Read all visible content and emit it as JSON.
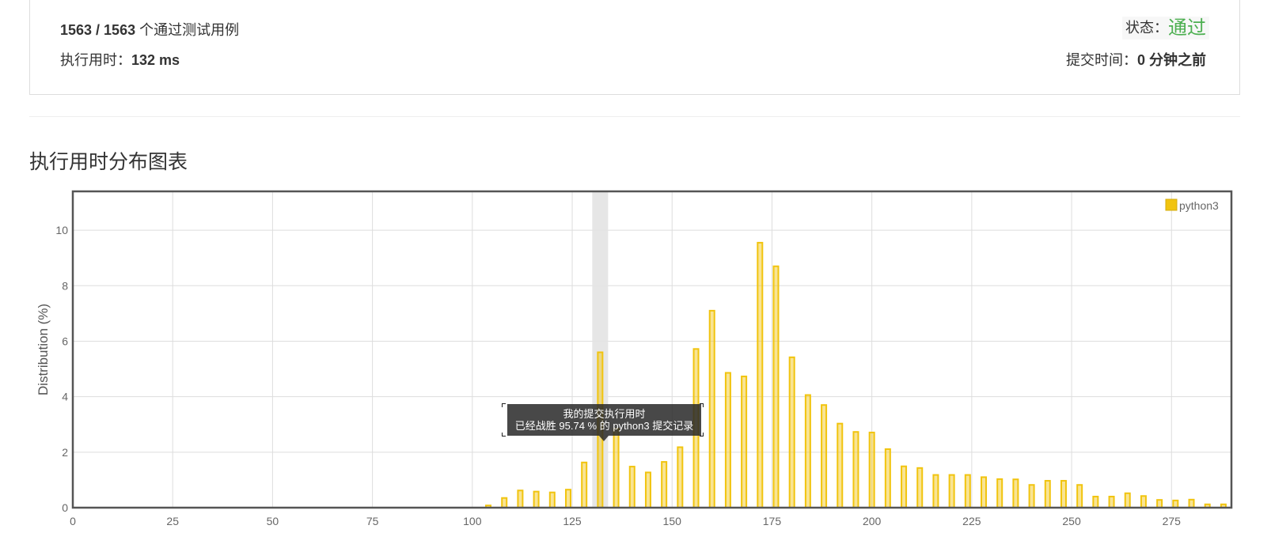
{
  "summary": {
    "cases_passed": "1563 / 1563",
    "cases_suffix": " 个通过测试用例",
    "runtime_label": "执行用时：",
    "runtime_value": "132 ms",
    "status_label": "状态：",
    "status_value": "通过",
    "submit_time_label": "提交时间：",
    "submit_time_value": "0 分钟之前",
    "status_color": "#4caf50"
  },
  "section_title": "执行用时分布图表",
  "tooltip": {
    "line1": "我的提交执行用时",
    "line2": "已经战胜 95.74 % 的 python3 提交记录"
  },
  "chart_data": {
    "type": "bar",
    "ylabel": "Distribution (%)",
    "xlabel": "",
    "xlim": [
      0,
      290
    ],
    "ylim": [
      0,
      11.4
    ],
    "x_ticks": [
      0,
      25,
      50,
      75,
      100,
      125,
      150,
      175,
      200,
      225,
      250,
      275
    ],
    "y_ticks": [
      0,
      2,
      4,
      6,
      8,
      10
    ],
    "grid": true,
    "legend_position": "top-right",
    "highlight_x": 132,
    "series": [
      {
        "name": "python3",
        "color": "#f1c40f",
        "x": [
          104,
          108,
          112,
          116,
          120,
          124,
          128,
          132,
          136,
          140,
          144,
          148,
          152,
          156,
          160,
          164,
          168,
          172,
          176,
          180,
          184,
          188,
          192,
          196,
          200,
          204,
          208,
          212,
          216,
          220,
          224,
          228,
          232,
          236,
          240,
          244,
          248,
          252,
          256,
          260,
          264,
          268,
          272,
          276,
          280,
          284,
          288
        ],
        "values": [
          0.08,
          0.35,
          0.62,
          0.58,
          0.55,
          0.65,
          1.63,
          5.6,
          2.85,
          1.48,
          1.27,
          1.65,
          2.18,
          5.72,
          7.1,
          4.86,
          4.73,
          9.55,
          8.7,
          5.42,
          4.06,
          3.7,
          3.03,
          2.73,
          2.71,
          2.11,
          1.49,
          1.43,
          1.18,
          1.18,
          1.18,
          1.1,
          1.03,
          1.02,
          0.82,
          0.97,
          0.97,
          0.82,
          0.4,
          0.4,
          0.52,
          0.42,
          0.28,
          0.26,
          0.29,
          0.12,
          0.12
        ]
      }
    ]
  }
}
